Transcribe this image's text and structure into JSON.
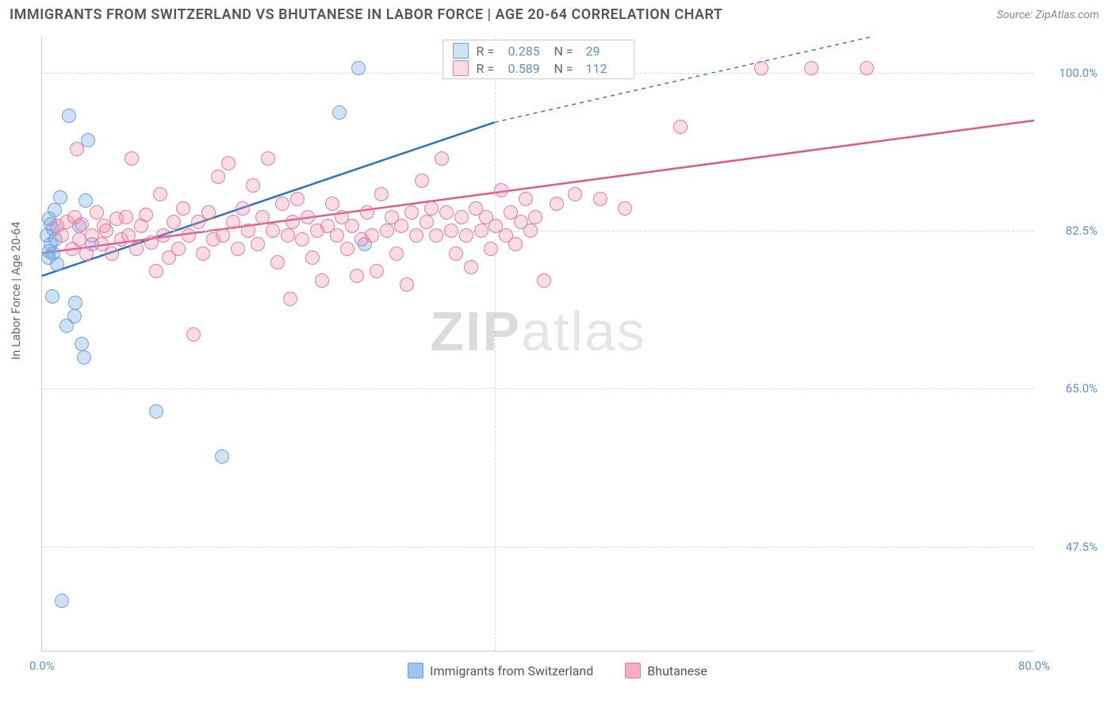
{
  "title": "IMMIGRANTS FROM SWITZERLAND VS BHUTANESE IN LABOR FORCE | AGE 20-64 CORRELATION CHART",
  "source": "Source: ZipAtlas.com",
  "ylabel": "In Labor Force | Age 20-64",
  "watermark_a": "ZIP",
  "watermark_b": "atlas",
  "chart": {
    "type": "scatter",
    "background_color": "#ffffff",
    "grid_color": "#dddddd",
    "axis_color": "#cccccc",
    "tick_color": "#5b8fd6",
    "tick_fontsize": 15,
    "xlim": [
      0,
      80
    ],
    "ylim": [
      36,
      104
    ],
    "xticks": [
      {
        "pos": 0,
        "label": "0.0%"
      },
      {
        "pos": 80,
        "label": "80.0%"
      }
    ],
    "yticks": [
      {
        "pos": 47.5,
        "label": "47.5%"
      },
      {
        "pos": 65.0,
        "label": "65.0%"
      },
      {
        "pos": 82.5,
        "label": "82.5%"
      },
      {
        "pos": 100.0,
        "label": "100.0%"
      }
    ],
    "x_gridlines": [
      36.5
    ],
    "marker_radius": 9,
    "marker_stroke_width": 1.5,
    "series": [
      {
        "name": "Immigrants from Switzerland",
        "fill": "rgba(120,170,225,0.35)",
        "stroke": "#6fa3dd",
        "line_color": "#2f6fc4",
        "line_width": 2.5,
        "R": "0.285",
        "N": "29",
        "trend_solid": {
          "x1": 0,
          "y1": 77.5,
          "x2": 36.5,
          "y2": 94.5
        },
        "trend_dashed": {
          "x1": 36.5,
          "y1": 94.5,
          "x2": 67,
          "y2": 104
        },
        "points": [
          [
            0.4,
            82.0
          ],
          [
            0.5,
            79.5
          ],
          [
            0.6,
            80.2
          ],
          [
            0.7,
            81.0
          ],
          [
            0.7,
            83.2
          ],
          [
            0.9,
            82.7
          ],
          [
            0.9,
            80.0
          ],
          [
            1.0,
            84.8
          ],
          [
            1.5,
            86.2
          ],
          [
            2.2,
            95.2
          ],
          [
            3.5,
            85.8
          ],
          [
            3.7,
            92.5
          ],
          [
            4.0,
            81.0
          ],
          [
            0.8,
            75.2
          ],
          [
            1.2,
            78.8
          ],
          [
            2.0,
            72.0
          ],
          [
            2.6,
            73.0
          ],
          [
            2.7,
            74.5
          ],
          [
            3.2,
            70.0
          ],
          [
            3.4,
            68.5
          ],
          [
            1.6,
            41.5
          ],
          [
            9.2,
            62.5
          ],
          [
            14.5,
            57.5
          ],
          [
            24.0,
            95.6
          ],
          [
            25.5,
            100.5
          ],
          [
            26.0,
            81.0
          ],
          [
            3.0,
            83.0
          ],
          [
            0.6,
            83.8
          ],
          [
            1.1,
            81.5
          ]
        ]
      },
      {
        "name": "Bhutanese",
        "fill": "rgba(240,140,170,0.30)",
        "stroke": "#e87ba0",
        "line_color": "#e05a8a",
        "line_width": 2.5,
        "R": "0.589",
        "N": "112",
        "trend_solid": {
          "x1": 0,
          "y1": 80.0,
          "x2": 80,
          "y2": 94.7
        },
        "points": [
          [
            1.2,
            83.0
          ],
          [
            1.6,
            82.0
          ],
          [
            2.0,
            83.5
          ],
          [
            2.4,
            80.5
          ],
          [
            2.6,
            84.0
          ],
          [
            2.8,
            91.5
          ],
          [
            3.0,
            81.5
          ],
          [
            3.2,
            83.2
          ],
          [
            3.6,
            80.0
          ],
          [
            4.0,
            82.0
          ],
          [
            4.4,
            84.5
          ],
          [
            4.8,
            81.0
          ],
          [
            5.0,
            83.0
          ],
          [
            5.2,
            82.5
          ],
          [
            5.6,
            80.0
          ],
          [
            6.0,
            83.8
          ],
          [
            6.4,
            81.5
          ],
          [
            6.8,
            84.0
          ],
          [
            7.0,
            82.0
          ],
          [
            7.2,
            90.5
          ],
          [
            7.6,
            80.5
          ],
          [
            8.0,
            83.0
          ],
          [
            8.4,
            84.3
          ],
          [
            8.8,
            81.2
          ],
          [
            9.2,
            78.0
          ],
          [
            9.5,
            86.5
          ],
          [
            9.8,
            82.0
          ],
          [
            10.2,
            79.5
          ],
          [
            10.6,
            83.5
          ],
          [
            11.0,
            80.5
          ],
          [
            11.4,
            85.0
          ],
          [
            11.8,
            82.0
          ],
          [
            12.2,
            71.0
          ],
          [
            12.6,
            83.5
          ],
          [
            13.0,
            80.0
          ],
          [
            13.4,
            84.5
          ],
          [
            13.8,
            81.5
          ],
          [
            14.2,
            88.5
          ],
          [
            14.6,
            82.0
          ],
          [
            15.0,
            90.0
          ],
          [
            15.4,
            83.5
          ],
          [
            15.8,
            80.5
          ],
          [
            16.2,
            85.0
          ],
          [
            16.6,
            82.5
          ],
          [
            17.0,
            87.5
          ],
          [
            17.4,
            81.0
          ],
          [
            17.8,
            84.0
          ],
          [
            18.2,
            90.5
          ],
          [
            18.6,
            82.5
          ],
          [
            19.0,
            79.0
          ],
          [
            19.4,
            85.5
          ],
          [
            19.8,
            82.0
          ],
          [
            20.2,
            83.5
          ],
          [
            20.6,
            86.0
          ],
          [
            21.0,
            81.5
          ],
          [
            21.4,
            84.0
          ],
          [
            21.8,
            79.5
          ],
          [
            22.2,
            82.5
          ],
          [
            22.6,
            77.0
          ],
          [
            23.0,
            83.0
          ],
          [
            23.4,
            85.5
          ],
          [
            23.8,
            82.0
          ],
          [
            24.2,
            84.0
          ],
          [
            24.6,
            80.5
          ],
          [
            25.0,
            83.0
          ],
          [
            25.4,
            77.5
          ],
          [
            25.8,
            81.5
          ],
          [
            26.2,
            84.5
          ],
          [
            26.6,
            82.0
          ],
          [
            27.0,
            78.0
          ],
          [
            27.4,
            86.5
          ],
          [
            27.8,
            82.5
          ],
          [
            28.2,
            84.0
          ],
          [
            28.6,
            80.0
          ],
          [
            29.0,
            83.0
          ],
          [
            29.4,
            76.5
          ],
          [
            29.8,
            84.5
          ],
          [
            30.2,
            82.0
          ],
          [
            30.6,
            88.0
          ],
          [
            31.0,
            83.5
          ],
          [
            31.4,
            85.0
          ],
          [
            31.8,
            82.0
          ],
          [
            32.2,
            90.5
          ],
          [
            32.6,
            84.5
          ],
          [
            33.0,
            82.5
          ],
          [
            33.4,
            80.0
          ],
          [
            33.8,
            84.0
          ],
          [
            34.2,
            82.0
          ],
          [
            34.6,
            78.5
          ],
          [
            35.0,
            85.0
          ],
          [
            35.4,
            82.5
          ],
          [
            35.8,
            84.0
          ],
          [
            36.2,
            80.5
          ],
          [
            36.6,
            83.0
          ],
          [
            37.0,
            87.0
          ],
          [
            37.4,
            82.0
          ],
          [
            37.8,
            84.5
          ],
          [
            38.2,
            81.0
          ],
          [
            38.6,
            83.5
          ],
          [
            39.0,
            86.0
          ],
          [
            39.4,
            82.5
          ],
          [
            39.8,
            84.0
          ],
          [
            40.5,
            77.0
          ],
          [
            41.5,
            85.5
          ],
          [
            43.0,
            86.5
          ],
          [
            45.0,
            86.0
          ],
          [
            47.0,
            85.0
          ],
          [
            51.5,
            94.0
          ],
          [
            58.0,
            100.5
          ],
          [
            62.0,
            100.5
          ],
          [
            66.5,
            100.5
          ],
          [
            20.0,
            75.0
          ]
        ]
      }
    ]
  },
  "legend_bottom": [
    {
      "label": "Immigrants from Switzerland",
      "fill": "rgba(120,170,225,0.7)",
      "stroke": "#6fa3dd"
    },
    {
      "label": "Bhutanese",
      "fill": "rgba(240,140,170,0.7)",
      "stroke": "#e87ba0"
    }
  ]
}
